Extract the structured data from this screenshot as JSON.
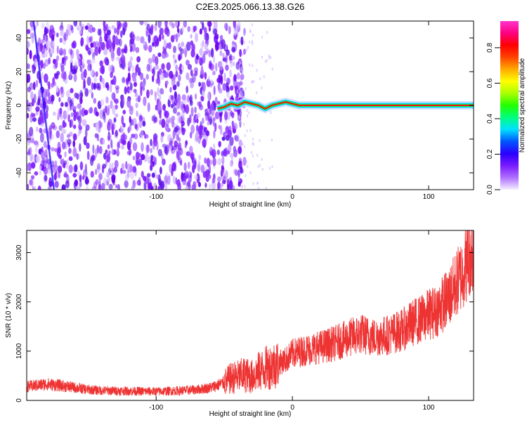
{
  "title": "C2E3.2025.066.13.38.G26",
  "chart_data": [
    {
      "type": "heatmap",
      "xlabel": "Height of straight line (km)",
      "ylabel": "Frequency (Hz)",
      "xlim": [
        -195,
        133
      ],
      "ylim": [
        -50,
        50
      ],
      "xticks": [
        -100,
        0,
        100
      ],
      "xtick_labels": [
        "-100",
        "0",
        "100"
      ],
      "yticks": [
        -40,
        -20,
        0,
        20,
        40
      ],
      "ytick_labels": [
        "-40",
        "-20",
        "0",
        "20",
        "40"
      ],
      "grid": false,
      "noise_region": {
        "x_range": [
          -195,
          -35
        ],
        "note_color": "#7a1aff"
      },
      "frequency_trace": [
        {
          "x": -55,
          "f": -2
        },
        {
          "x": -50,
          "f": -1
        },
        {
          "x": -45,
          "f": 1
        },
        {
          "x": -40,
          "f": 0
        },
        {
          "x": -35,
          "f": 2
        },
        {
          "x": -30,
          "f": 1
        },
        {
          "x": -25,
          "f": 0
        },
        {
          "x": -20,
          "f": -2
        },
        {
          "x": -15,
          "f": 0
        },
        {
          "x": -10,
          "f": 1
        },
        {
          "x": -5,
          "f": 2
        },
        {
          "x": 0,
          "f": 1
        },
        {
          "x": 5,
          "f": 0
        },
        {
          "x": 133,
          "f": 0
        }
      ],
      "colorbar": {
        "label": "Normalized spectral amplitude",
        "range": [
          0.0,
          0.95
        ],
        "ticks": [
          0.0,
          0.2,
          0.4,
          0.6,
          0.8
        ],
        "tick_labels": [
          "0.0",
          "0.2",
          "0.4",
          "0.6",
          "0.8"
        ],
        "colors": [
          "#f4eeff",
          "#b070ff",
          "#7a1aff",
          "#2a00ff",
          "#0055ff",
          "#00e0ff",
          "#00ff80",
          "#22ff00",
          "#aaff00",
          "#ffff00",
          "#ffaa00",
          "#ff4400",
          "#ff0000",
          "#ff0080",
          "#ff33cc"
        ]
      }
    },
    {
      "type": "line",
      "xlabel": "Height of straight line (km)",
      "ylabel": "SNR (10 * v/v)",
      "xlim": [
        -195,
        133
      ],
      "ylim": [
        0,
        3450
      ],
      "xticks": [
        -100,
        0,
        100
      ],
      "xtick_labels": [
        "-100",
        "0",
        "100"
      ],
      "yticks": [
        0,
        1000,
        2000,
        3000
      ],
      "ytick_labels": [
        "0",
        "1000",
        "2000",
        "3000"
      ],
      "grid": false,
      "series": [
        {
          "color": "#ee3333",
          "x": [
            -195,
            -180,
            -170,
            -160,
            -150,
            -140,
            -120,
            -100,
            -80,
            -70,
            -60,
            -50,
            -45,
            -40,
            -35,
            -30,
            -25,
            -20,
            -15,
            -10,
            -5,
            0,
            10,
            20,
            30,
            40,
            50,
            60,
            70,
            80,
            90,
            95,
            100,
            105,
            110,
            115,
            120,
            125,
            130,
            133
          ],
          "y": [
            280,
            330,
            300,
            260,
            220,
            200,
            190,
            180,
            200,
            220,
            260,
            360,
            450,
            480,
            520,
            480,
            580,
            650,
            700,
            760,
            820,
            950,
            1020,
            1080,
            1150,
            1250,
            1350,
            1280,
            1330,
            1420,
            1600,
            1650,
            1750,
            1800,
            1950,
            2100,
            2350,
            2600,
            2950,
            3050
          ]
        }
      ]
    }
  ]
}
